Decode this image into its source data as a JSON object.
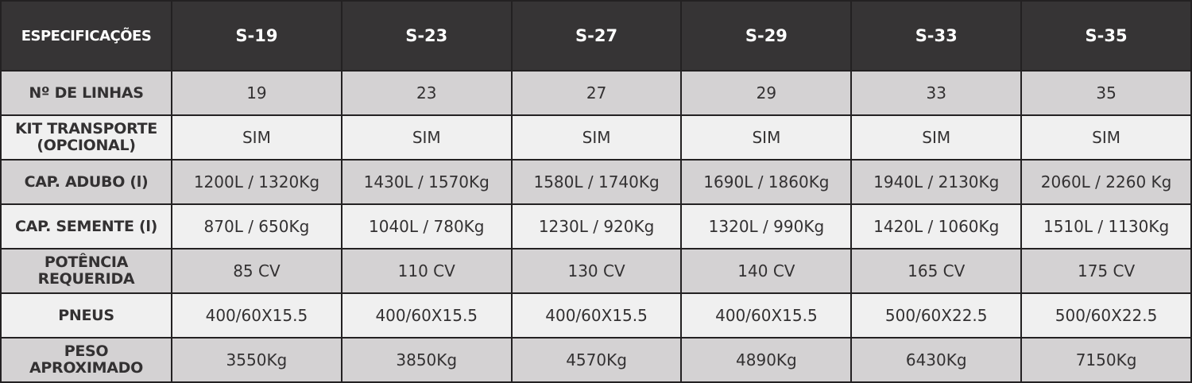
{
  "header": {
    "spec_label": "ESPECIFICAÇÕES",
    "models": [
      "S-19",
      "S-23",
      "S-27",
      "S-29",
      "S-33",
      "S-35"
    ]
  },
  "rows": [
    {
      "label_lines": [
        "Nº DE LINHAS"
      ],
      "values": [
        "19",
        "23",
        "27",
        "29",
        "33",
        "35"
      ]
    },
    {
      "label_lines": [
        "KIT TRANSPORTE",
        "(OPCIONAL)"
      ],
      "values": [
        "SIM",
        "SIM",
        "SIM",
        "SIM",
        "SIM",
        "SIM"
      ]
    },
    {
      "label_lines": [
        "CAP. ADUBO (l)"
      ],
      "values": [
        "1200L / 1320Kg",
        "1430L / 1570Kg",
        "1580L / 1740Kg",
        "1690L / 1860Kg",
        "1940L / 2130Kg",
        "2060L / 2260 Kg"
      ]
    },
    {
      "label_lines": [
        "CAP. SEMENTE (l)"
      ],
      "values": [
        "870L / 650Kg",
        "1040L / 780Kg",
        "1230L / 920Kg",
        "1320L / 990Kg",
        "1420L / 1060Kg",
        "1510L / 1130Kg"
      ]
    },
    {
      "label_lines": [
        "POTÊNCIA",
        "REQUERIDA"
      ],
      "values": [
        "85 CV",
        "110 CV",
        "130 CV",
        "140 CV",
        "165 CV",
        "175 CV"
      ]
    },
    {
      "label_lines": [
        "PNEUS"
      ],
      "values": [
        "400/60X15.5",
        "400/60X15.5",
        "400/60X15.5",
        "400/60X15.5",
        "500/60X22.5",
        "500/60X22.5"
      ]
    },
    {
      "label_lines": [
        "PESO",
        "APROXIMADO"
      ],
      "values": [
        "3550Kg",
        "3850Kg",
        "4570Kg",
        "4890Kg",
        "6430Kg",
        "7150Kg"
      ]
    }
  ],
  "colors": {
    "header_bg": "#363435",
    "row_gray": "#d4d2d3",
    "row_light": "#f0f0f0",
    "text": "#333132"
  }
}
